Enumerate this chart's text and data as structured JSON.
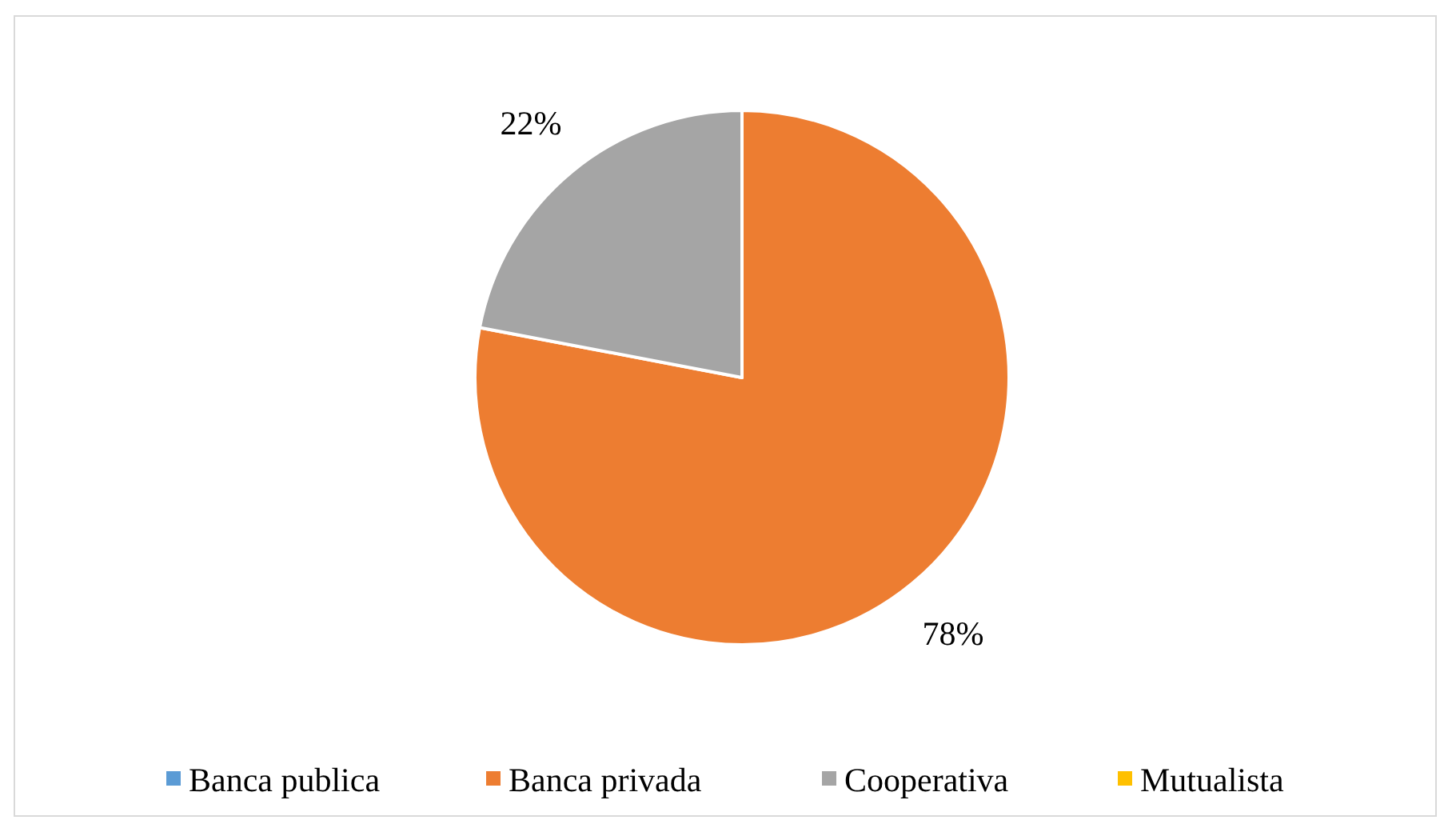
{
  "chart_data": {
    "type": "pie",
    "categories": [
      "Banca publica",
      "Banca privada",
      "Cooperativa",
      "Mutualista"
    ],
    "values": [
      0,
      78,
      22,
      0
    ],
    "colors": [
      "#5b9bd5",
      "#ed7d31",
      "#a5a5a5",
      "#ffc000"
    ],
    "value_labels": [
      null,
      "78%",
      "22%",
      null
    ],
    "legend": "bottom"
  }
}
